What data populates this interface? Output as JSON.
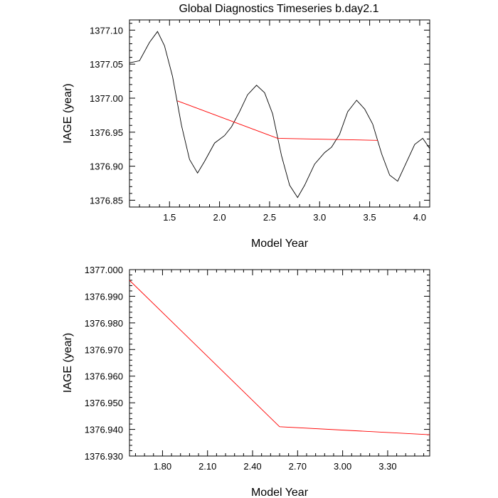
{
  "chart_data": [
    {
      "type": "line",
      "title": "Global Diagnostics Timeseries b.day2.1",
      "xlabel": "Model Year",
      "ylabel": "IAGE (year)",
      "xlim": [
        1.1,
        4.1
      ],
      "ylim": [
        1376.84,
        1377.115
      ],
      "x_ticks": [
        1.5,
        2.0,
        2.5,
        3.0,
        3.5,
        4.0
      ],
      "x_tick_labels": [
        "1.5",
        "2.0",
        "2.5",
        "3.0",
        "3.5",
        "4.0"
      ],
      "y_ticks": [
        1376.85,
        1376.9,
        1376.95,
        1377.0,
        1377.05,
        1377.1
      ],
      "y_tick_labels": [
        "1376.85",
        "1376.90",
        "1376.95",
        "1377.00",
        "1377.05",
        "1377.10"
      ],
      "series": [
        {
          "color": "#000000",
          "x": [
            1.1,
            1.2,
            1.3,
            1.38,
            1.45,
            1.53,
            1.62,
            1.7,
            1.78,
            1.85,
            1.95,
            2.05,
            2.12,
            2.2,
            2.28,
            2.37,
            2.45,
            2.53,
            2.62,
            2.7,
            2.78,
            2.85,
            2.95,
            3.05,
            3.12,
            3.2,
            3.28,
            3.37,
            3.45,
            3.53,
            3.62,
            3.7,
            3.78,
            3.85,
            3.95,
            4.03,
            4.1
          ],
          "y": [
            1377.052,
            1377.055,
            1377.082,
            1377.098,
            1377.077,
            1377.032,
            1376.96,
            1376.91,
            1376.89,
            1376.907,
            1376.934,
            1376.945,
            1376.958,
            1376.98,
            1377.005,
            1377.019,
            1377.008,
            1376.977,
            1376.915,
            1376.872,
            1376.854,
            1376.872,
            1376.903,
            1376.92,
            1376.928,
            1376.947,
            1376.98,
            1376.997,
            1376.984,
            1376.962,
            1376.918,
            1376.887,
            1376.878,
            1376.9,
            1376.932,
            1376.941,
            1376.926
          ]
        },
        {
          "color": "#ff0000",
          "x": [
            1.58,
            2.58,
            3.58
          ],
          "y": [
            1376.996,
            1376.941,
            1376.938
          ]
        }
      ]
    },
    {
      "type": "line",
      "xlabel": "Model Year",
      "ylabel": "IAGE (year)",
      "xlim": [
        1.58,
        3.58
      ],
      "ylim": [
        1376.93,
        1377.0
      ],
      "x_ticks": [
        1.8,
        2.1,
        2.4,
        2.7,
        3.0,
        3.3
      ],
      "x_tick_labels": [
        "1.80",
        "2.10",
        "2.40",
        "2.70",
        "3.00",
        "3.30"
      ],
      "y_ticks": [
        1376.93,
        1376.94,
        1376.95,
        1376.96,
        1376.97,
        1376.98,
        1376.99,
        1377.0
      ],
      "y_tick_labels": [
        "1376.930",
        "1376.940",
        "1376.950",
        "1376.960",
        "1376.970",
        "1376.980",
        "1376.990",
        "1377.000"
      ],
      "series": [
        {
          "color": "#ff0000",
          "x": [
            1.58,
            2.58,
            3.58
          ],
          "y": [
            1376.996,
            1376.941,
            1376.938
          ]
        }
      ]
    }
  ]
}
